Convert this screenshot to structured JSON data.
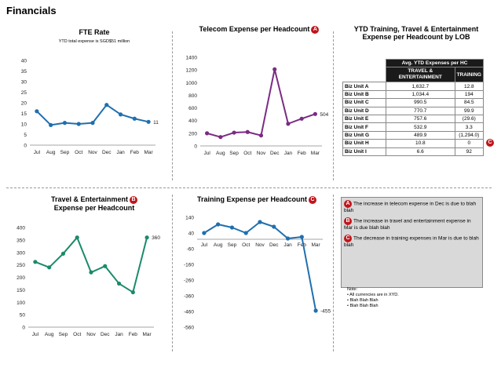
{
  "page": {
    "title": "Financials"
  },
  "colors": {
    "fte": "#1f6faf",
    "telecom": "#7b2b83",
    "travel": "#1b8a6b",
    "training": "#1f6faf",
    "badge": "#c0151b"
  },
  "chart_data": [
    {
      "id": "fte",
      "type": "line",
      "title": "FTE Rate",
      "subtitle": "YTD total expense is SGD$51 million",
      "categories": [
        "Jul",
        "Aug",
        "Sep",
        "Oct",
        "Nov",
        "Dec",
        "Jan",
        "Feb",
        "Mar"
      ],
      "values": [
        16,
        9.5,
        10.5,
        10,
        10.5,
        19,
        14.5,
        12.5,
        11
      ],
      "ylim": [
        0,
        40
      ],
      "yticks": [
        0,
        5,
        10,
        15,
        20,
        25,
        30,
        35,
        40
      ],
      "end_label": "11"
    },
    {
      "id": "telecom",
      "type": "line",
      "title": "Telecom Expense per Headcount",
      "badge": "A",
      "categories": [
        "Jul",
        "Aug",
        "Sep",
        "Oct",
        "Nov",
        "Dec",
        "Jan",
        "Feb",
        "Mar"
      ],
      "values": [
        200,
        140,
        210,
        220,
        165,
        1210,
        350,
        430,
        504
      ],
      "ylim": [
        0,
        1400
      ],
      "yticks": [
        0,
        200,
        400,
        600,
        800,
        1000,
        1200,
        1400
      ],
      "end_label": "504"
    },
    {
      "id": "travel",
      "type": "line",
      "title": "Travel & Entertainment",
      "title2": "Expense per Headcount",
      "badge": "B",
      "categories": [
        "Jul",
        "Aug",
        "Sep",
        "Oct",
        "Nov",
        "Dec",
        "Jan",
        "Feb",
        "Mar"
      ],
      "values": [
        262,
        240,
        295,
        360,
        220,
        245,
        175,
        140,
        360
      ],
      "ylim": [
        0,
        400
      ],
      "yticks": [
        0,
        50,
        100,
        150,
        200,
        250,
        300,
        350,
        400
      ],
      "end_label": "360"
    },
    {
      "id": "training",
      "type": "line",
      "title": "Training Expense per Headcount",
      "badge": "C",
      "categories": [
        "Jul",
        "Aug",
        "Sep",
        "Oct",
        "Nov",
        "Dec",
        "Jan",
        "Feb",
        "Mar"
      ],
      "values": [
        40,
        95,
        75,
        40,
        110,
        80,
        5,
        15,
        -455
      ],
      "ylim": [
        -560,
        140
      ],
      "yticks": [
        140,
        40,
        -60,
        -160,
        -260,
        -360,
        -460,
        -560
      ],
      "end_label": "-455"
    },
    {
      "id": "lob",
      "type": "table",
      "title": "YTD Training, Travel & Entertainment",
      "title2": "Expense per Headcount by LOB",
      "header_group": "Avg. YTD Expenses per HC",
      "columns": [
        "TRAVEL & ENTERTAINMENT",
        "TRAINING"
      ],
      "rows": [
        {
          "unit": "Biz Unit A",
          "travel": "1,632.7",
          "training": "12.8"
        },
        {
          "unit": "Biz Unit B",
          "travel": "1,034.4",
          "training": "194"
        },
        {
          "unit": "Biz Unit C",
          "travel": "990.5",
          "training": "84.5"
        },
        {
          "unit": "Biz Unit D",
          "travel": "770.7",
          "training": "99.9"
        },
        {
          "unit": "Biz Unit E",
          "travel": "757.6",
          "training": "(29.6)"
        },
        {
          "unit": "Biz Unit F",
          "travel": "532.9",
          "training": "3.3"
        },
        {
          "unit": "Biz Unit G",
          "travel": "489.9",
          "training": "(1,294.0)"
        },
        {
          "unit": "Biz Unit H",
          "travel": "10.8",
          "training": "0"
        },
        {
          "unit": "Biz Unit I",
          "travel": "6.6",
          "training": "92"
        }
      ],
      "row_badge": {
        "row": "Biz Unit G",
        "label": "C"
      }
    }
  ],
  "notes": [
    {
      "badge": "A",
      "text": "The increase in telecom expense in Dec is due to blah blah"
    },
    {
      "badge": "B",
      "text": "The increase in travel and entertainment expense in Mar is due blah blah"
    },
    {
      "badge": "C",
      "text": "The decrease in training expenses in Mar is due to blah blah"
    }
  ],
  "footnotes": {
    "title": "Note:",
    "items": [
      "• All currencies are in XYD.",
      "• Blah Blah Blah",
      "• Blah Blah Blah"
    ]
  }
}
